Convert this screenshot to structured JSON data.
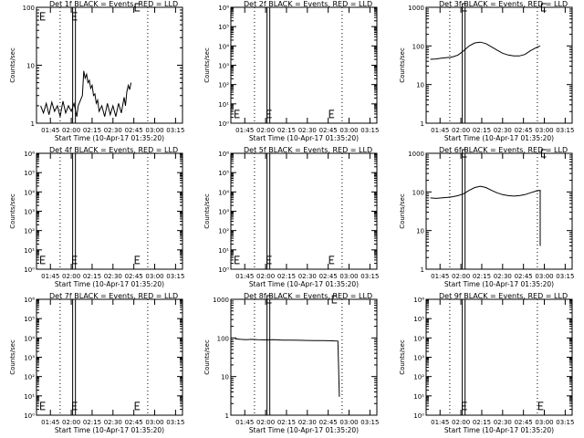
{
  "figure": {
    "xlabel": "Start Time (10-Apr-17 01:35:20)",
    "ylabel": "Counts/sec",
    "xtick_labels": [
      "01:45",
      "02:00",
      "02:15",
      "02:30",
      "02:45",
      "03:00",
      "03:15"
    ]
  },
  "chart_data": [
    {
      "type": "line",
      "title": "Det 1f BLACK = Events, RED = LLD",
      "ylabel": "Counts/sec",
      "scale": "log",
      "ylim": [
        1,
        100
      ],
      "yticks": [
        {
          "v": 1,
          "t": "1"
        },
        {
          "v": 10,
          "t": "10"
        },
        {
          "v": 100,
          "t": "100"
        }
      ],
      "markers": [
        {
          "x": "01:38",
          "y": 70
        },
        {
          "x": "02:01",
          "y": 70
        },
        {
          "x": "02:46",
          "y": 100
        }
      ],
      "series": [
        {
          "points": [
            [
              "01:38",
              2
            ],
            [
              "01:40",
              1.5
            ],
            [
              "01:42",
              2.2
            ],
            [
              "01:44",
              1.4
            ],
            [
              "01:46",
              2.3
            ],
            [
              "01:48",
              1.6
            ],
            [
              "01:50",
              2
            ],
            [
              "01:52",
              1.3
            ],
            [
              "01:54",
              2.4
            ],
            [
              "01:56",
              1.5
            ],
            [
              "01:58",
              2
            ],
            [
              "02:00",
              1.6
            ],
            [
              "02:02",
              2.2
            ],
            [
              "02:04",
              1.3
            ],
            [
              "02:05",
              2
            ],
            [
              "02:08",
              3
            ],
            [
              "02:09",
              8
            ],
            [
              "02:10",
              6
            ],
            [
              "02:11",
              7
            ],
            [
              "02:12",
              5
            ],
            [
              "02:13",
              5.5
            ],
            [
              "02:14",
              4
            ],
            [
              "02:15",
              4.5
            ],
            [
              "02:16",
              3
            ],
            [
              "02:17",
              3.2
            ],
            [
              "02:18",
              2.2
            ],
            [
              "02:19",
              2.5
            ],
            [
              "02:20",
              1.6
            ],
            [
              "02:22",
              2
            ],
            [
              "02:24",
              1.3
            ],
            [
              "02:26",
              2.2
            ],
            [
              "02:28",
              1.4
            ],
            [
              "02:30",
              2
            ],
            [
              "02:32",
              1.3
            ],
            [
              "02:34",
              2.2
            ],
            [
              "02:36",
              1.5
            ],
            [
              "02:38",
              2.8
            ],
            [
              "02:39",
              2
            ],
            [
              "02:40",
              3.5
            ],
            [
              "02:41",
              4.5
            ],
            [
              "02:42",
              3.8
            ],
            [
              "02:43",
              5
            ]
          ]
        }
      ]
    },
    {
      "type": "line",
      "title": "Det 2f BLACK = Events, RED = LLD",
      "ylabel": "Counts/sec",
      "scale": "log",
      "ylim": [
        1,
        1000000
      ],
      "yticks": [
        {
          "v": 1,
          "t": "10⁰"
        },
        {
          "v": 10,
          "t": "10¹"
        },
        {
          "v": 100,
          "t": "10²"
        },
        {
          "v": 1000,
          "t": "10³"
        },
        {
          "v": 10000,
          "t": "10⁴"
        },
        {
          "v": 100000,
          "t": "10⁵"
        },
        {
          "v": 1000000,
          "t": "10⁶"
        }
      ],
      "markers": [
        {
          "x": "01:38",
          "y": 3
        },
        {
          "x": "02:01",
          "y": 3
        },
        {
          "x": "02:46",
          "y": 3
        }
      ],
      "series": []
    },
    {
      "type": "line",
      "title": "Det 3f BLACK = Events, RED = LLD",
      "ylabel": "Counts/sec",
      "scale": "log",
      "ylim": [
        1,
        1000
      ],
      "yticks": [
        {
          "v": 1,
          "t": "1"
        },
        {
          "v": 10,
          "t": "10"
        },
        {
          "v": 100,
          "t": "100"
        },
        {
          "v": 1000,
          "t": "1000"
        }
      ],
      "markers": [
        {
          "x": "02:01",
          "y": 1000
        },
        {
          "x": "02:58",
          "y": 1000
        }
      ],
      "series": [
        {
          "points": [
            [
              "01:38",
              45
            ],
            [
              "01:42",
              46
            ],
            [
              "01:46",
              48
            ],
            [
              "01:50",
              50
            ],
            [
              "01:54",
              52
            ],
            [
              "01:58",
              58
            ],
            [
              "02:02",
              75
            ],
            [
              "02:06",
              100
            ],
            [
              "02:10",
              120
            ],
            [
              "02:14",
              125
            ],
            [
              "02:18",
              115
            ],
            [
              "02:22",
              95
            ],
            [
              "02:26",
              78
            ],
            [
              "02:30",
              65
            ],
            [
              "02:34",
              58
            ],
            [
              "02:38",
              55
            ],
            [
              "02:42",
              55
            ],
            [
              "02:46",
              60
            ],
            [
              "02:50",
              75
            ],
            [
              "02:54",
              90
            ],
            [
              "02:57",
              100
            ]
          ]
        }
      ]
    },
    {
      "type": "line",
      "title": "Det 4f BLACK = Events, RED = LLD",
      "ylabel": "Counts/sec",
      "scale": "log",
      "ylim": [
        1,
        1000000
      ],
      "yticks": [
        {
          "v": 1,
          "t": "10⁰"
        },
        {
          "v": 10,
          "t": "10¹"
        },
        {
          "v": 100,
          "t": "10²"
        },
        {
          "v": 1000,
          "t": "10³"
        },
        {
          "v": 10000,
          "t": "10⁴"
        },
        {
          "v": 100000,
          "t": "10⁵"
        },
        {
          "v": 1000000,
          "t": "10⁶"
        }
      ],
      "markers": [
        {
          "x": "01:38",
          "y": 3
        },
        {
          "x": "02:01",
          "y": 3
        },
        {
          "x": "02:46",
          "y": 3
        }
      ],
      "series": []
    },
    {
      "type": "line",
      "title": "Det 5f BLACK = Events, RED = LLD",
      "ylabel": "Counts/sec",
      "scale": "log",
      "ylim": [
        1,
        1000000
      ],
      "yticks": [
        {
          "v": 1,
          "t": "10⁰"
        },
        {
          "v": 10,
          "t": "10¹"
        },
        {
          "v": 100,
          "t": "10²"
        },
        {
          "v": 1000,
          "t": "10³"
        },
        {
          "v": 10000,
          "t": "10⁴"
        },
        {
          "v": 100000,
          "t": "10⁵"
        },
        {
          "v": 1000000,
          "t": "10⁶"
        }
      ],
      "markers": [
        {
          "x": "01:38",
          "y": 3
        },
        {
          "x": "02:01",
          "y": 3
        },
        {
          "x": "02:46",
          "y": 3
        }
      ],
      "series": []
    },
    {
      "type": "line",
      "title": "Det 6f BLACK = Events, RED = LLD",
      "ylabel": "Counts/sec",
      "scale": "log",
      "ylim": [
        1,
        1000
      ],
      "yticks": [
        {
          "v": 1,
          "t": "1"
        },
        {
          "v": 10,
          "t": "10"
        },
        {
          "v": 100,
          "t": "100"
        },
        {
          "v": 1000,
          "t": "1000"
        }
      ],
      "markers": [
        {
          "x": "02:01",
          "y": 1000
        },
        {
          "x": "02:58",
          "y": 1000
        }
      ],
      "series": [
        {
          "points": [
            [
              "01:38",
              70
            ],
            [
              "01:42",
              68
            ],
            [
              "01:46",
              70
            ],
            [
              "01:50",
              72
            ],
            [
              "01:54",
              75
            ],
            [
              "01:58",
              80
            ],
            [
              "02:02",
              90
            ],
            [
              "02:06",
              110
            ],
            [
              "02:10",
              130
            ],
            [
              "02:14",
              140
            ],
            [
              "02:18",
              130
            ],
            [
              "02:22",
              110
            ],
            [
              "02:26",
              95
            ],
            [
              "02:30",
              85
            ],
            [
              "02:34",
              80
            ],
            [
              "02:38",
              78
            ],
            [
              "02:42",
              80
            ],
            [
              "02:46",
              85
            ],
            [
              "02:50",
              95
            ],
            [
              "02:54",
              105
            ],
            [
              "02:57",
              110
            ],
            [
              "02:57",
              4
            ]
          ]
        }
      ]
    },
    {
      "type": "line",
      "title": "Det 7f BLACK = Events, RED = LLD",
      "ylabel": "Counts/sec",
      "scale": "log",
      "ylim": [
        1,
        1000000
      ],
      "yticks": [
        {
          "v": 1,
          "t": "10⁰"
        },
        {
          "v": 10,
          "t": "10¹"
        },
        {
          "v": 100,
          "t": "10²"
        },
        {
          "v": 1000,
          "t": "10³"
        },
        {
          "v": 10000,
          "t": "10⁴"
        },
        {
          "v": 100000,
          "t": "10⁵"
        },
        {
          "v": 1000000,
          "t": "10⁶"
        }
      ],
      "markers": [
        {
          "x": "01:38",
          "y": 3
        },
        {
          "x": "02:01",
          "y": 3
        },
        {
          "x": "02:46",
          "y": 3
        }
      ],
      "series": []
    },
    {
      "type": "line",
      "title": "Det 8f BLACK = Events, RED = LLD",
      "ylabel": "Counts/sec",
      "scale": "log",
      "ylim": [
        1,
        1000
      ],
      "yticks": [
        {
          "v": 1,
          "t": "1"
        },
        {
          "v": 10,
          "t": "10"
        },
        {
          "v": 100,
          "t": "100"
        },
        {
          "v": 1000,
          "t": "1000"
        }
      ],
      "markers": [
        {
          "x": "02:01",
          "y": 1000
        },
        {
          "x": "02:48",
          "y": 1000
        }
      ],
      "series": [
        {
          "points": [
            [
              "01:38",
              95
            ],
            [
              "01:42",
              92
            ],
            [
              "01:46",
              90
            ],
            [
              "01:50",
              92
            ],
            [
              "01:54",
              90
            ],
            [
              "02:00",
              89
            ],
            [
              "02:06",
              90
            ],
            [
              "02:12",
              88
            ],
            [
              "02:18",
              88
            ],
            [
              "02:24",
              87
            ],
            [
              "02:30",
              86
            ],
            [
              "02:36",
              85
            ],
            [
              "02:42",
              85
            ],
            [
              "02:48",
              84
            ],
            [
              "02:52",
              83
            ],
            [
              "02:53",
              3
            ]
          ]
        }
      ]
    },
    {
      "type": "line",
      "title": "Det 9f BLACK = Events, RED = LLD",
      "ylabel": "Counts/sec",
      "scale": "log",
      "ylim": [
        1,
        1000000
      ],
      "yticks": [
        {
          "v": 1,
          "t": "10⁰"
        },
        {
          "v": 10,
          "t": "10¹"
        },
        {
          "v": 100,
          "t": "10²"
        },
        {
          "v": 1000,
          "t": "10³"
        },
        {
          "v": 10000,
          "t": "10⁴"
        },
        {
          "v": 100000,
          "t": "10⁵"
        },
        {
          "v": 1000000,
          "t": "10⁶"
        }
      ],
      "markers": [
        {
          "x": "02:01",
          "y": 3
        },
        {
          "x": "02:56",
          "y": 3
        }
      ],
      "series": []
    }
  ]
}
